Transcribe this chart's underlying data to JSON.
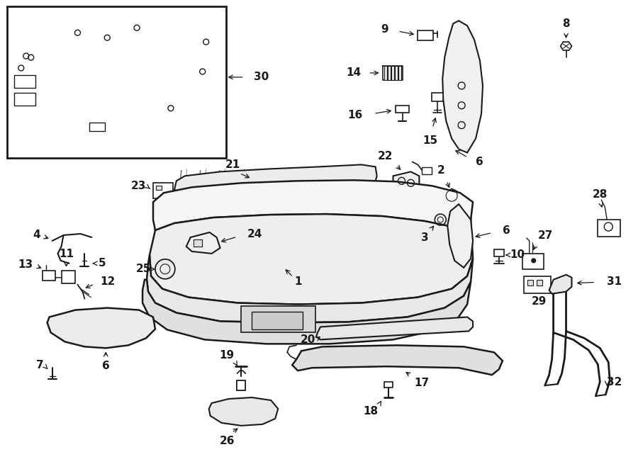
{
  "bg_color": "#ffffff",
  "line_color": "#1a1a1a",
  "fig_width": 9.0,
  "fig_height": 6.62,
  "dpi": 100,
  "label_fontsize": 11,
  "label_fontweight": "bold"
}
